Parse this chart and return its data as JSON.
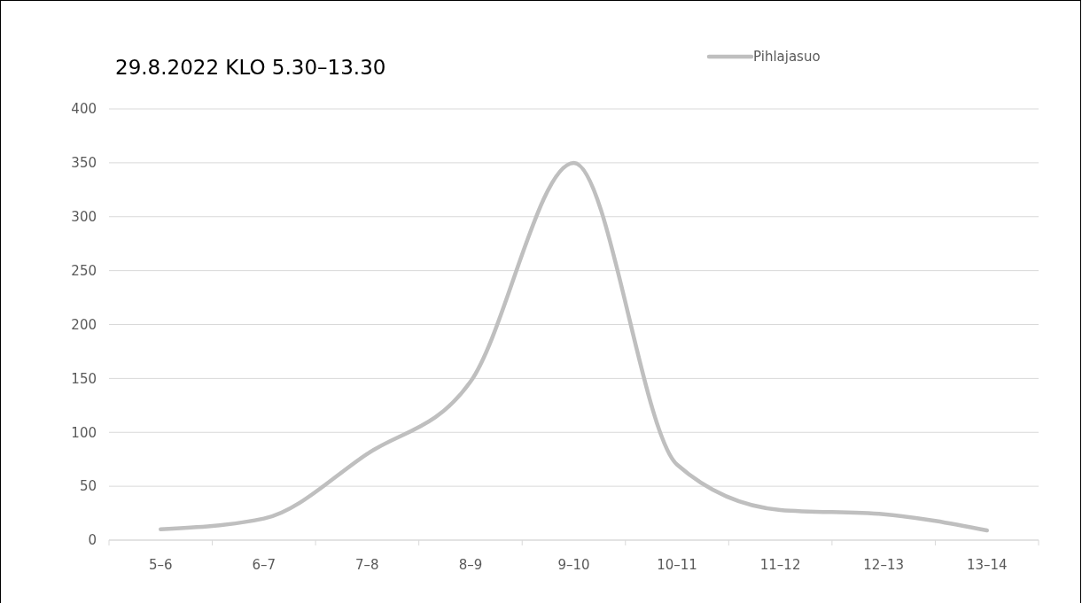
{
  "chart_data": {
    "type": "line",
    "title": "29.8.2022 KLO 5.30–13.30",
    "categories": [
      "5–6",
      "6–7",
      "7–8",
      "8–9",
      "9–10",
      "10–11",
      "11–12",
      "12–13",
      "13–14"
    ],
    "series": [
      {
        "name": "Pihlajasuo",
        "color": "#bfbfbf",
        "values": [
          10,
          20,
          80,
          147,
          350,
          70,
          28,
          24,
          9
        ]
      }
    ],
    "ylim": [
      0,
      400
    ],
    "yticks": [
      0,
      50,
      100,
      150,
      200,
      250,
      300,
      350,
      400
    ],
    "grid": "y",
    "legend": "top right",
    "marker": "none",
    "line_style": "solid"
  }
}
